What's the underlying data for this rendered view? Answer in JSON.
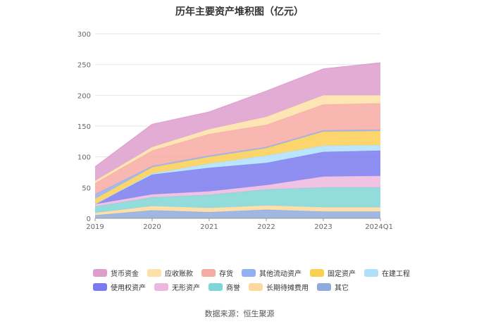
{
  "chart_data": {
    "type": "area",
    "stacked": true,
    "title": "历年主要资产堆积图（亿元）",
    "categories": [
      "2019",
      "2020",
      "2021",
      "2022",
      "2023",
      "2024Q1"
    ],
    "yticks": [
      "0",
      "50",
      "100",
      "150",
      "200",
      "250",
      "300"
    ],
    "ylim": [
      0,
      300
    ],
    "series": [
      {
        "name": "其它",
        "color": "#8faadc",
        "values": [
          5,
          13,
          10,
          14,
          11,
          11
        ]
      },
      {
        "name": "长期待摊费用",
        "color": "#fdd9a0",
        "values": [
          4,
          7,
          7,
          7,
          7,
          7
        ]
      },
      {
        "name": "商誉",
        "color": "#7fd6d6",
        "values": [
          10,
          14,
          21,
          26,
          32,
          32
        ]
      },
      {
        "name": "无形资产",
        "color": "#edb8df",
        "values": [
          4,
          5,
          6,
          7,
          18,
          19
        ]
      },
      {
        "name": "使用权资产",
        "color": "#7b7bf0",
        "values": [
          0,
          32,
          38,
          36,
          40,
          41
        ]
      },
      {
        "name": "在建工程",
        "color": "#aee0fb",
        "values": [
          0,
          2,
          7,
          12,
          10,
          9
        ]
      },
      {
        "name": "固定资产",
        "color": "#fbcf54",
        "values": [
          9,
          10,
          11,
          12,
          23,
          23
        ]
      },
      {
        "name": "其他流动资产",
        "color": "#8fb0f3",
        "values": [
          7,
          2,
          2,
          2,
          2,
          2
        ]
      },
      {
        "name": "存货",
        "color": "#f7aaa3",
        "values": [
          18,
          25,
          35,
          36,
          42,
          43
        ]
      },
      {
        "name": "应收账款",
        "color": "#fde0a8",
        "values": [
          4,
          6,
          8,
          13,
          15,
          13
        ]
      },
      {
        "name": "货币资金",
        "color": "#de9ecd",
        "values": [
          23,
          37,
          28,
          42,
          43,
          53
        ]
      }
    ],
    "legend_rows": [
      [
        "货币资金",
        "应收账款",
        "存货",
        "其他流动资产",
        "固定资产",
        "在建工程"
      ],
      [
        "使用权资产",
        "无形资产",
        "商誉",
        "长期待摊费用",
        "其它"
      ]
    ]
  },
  "source_text": "数据来源：恒生聚源"
}
